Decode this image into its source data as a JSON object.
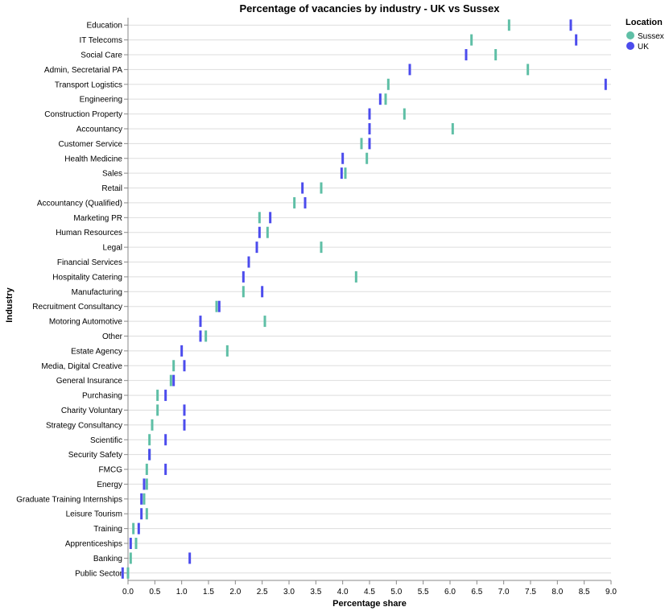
{
  "chart_data": {
    "type": "tick",
    "title": "Percentage of vacancies by industry - UK vs Sussex",
    "xlabel": "Percentage share",
    "ylabel": "Industry",
    "xlim": [
      0,
      9
    ],
    "x_ticks": [
      "0.0",
      "0.5",
      "1.0",
      "1.5",
      "2.0",
      "2.5",
      "3.0",
      "3.5",
      "4.0",
      "4.5",
      "5.0",
      "5.5",
      "6.0",
      "6.5",
      "7.0",
      "7.5",
      "8.0",
      "8.5",
      "9.0"
    ],
    "grid": true,
    "legend": {
      "title": "Location",
      "placement": "top-right"
    },
    "categories": [
      "Education",
      "IT Telecoms",
      "Social Care",
      "Admin, Secretarial PA",
      "Transport Logistics",
      "Engineering",
      "Construction Property",
      "Accountancy",
      "Customer Service",
      "Health Medicine",
      "Sales",
      "Retail",
      "Accountancy (Qualified)",
      "Marketing PR",
      "Human Resources",
      "Legal",
      "Financial Services",
      "Hospitality Catering",
      "Manufacturing",
      "Recruitment Consultancy",
      "Motoring Automotive",
      "Other",
      "Estate Agency",
      "Media, Digital Creative",
      "General Insurance",
      "Purchasing",
      "Charity Voluntary",
      "Strategy Consultancy",
      "Scientific",
      "Security Safety",
      "FMCG",
      "Energy",
      "Graduate Training Internships",
      "Leisure Tourism",
      "Training",
      "Apprenticeships",
      "Banking",
      "Public Sector"
    ],
    "series": [
      {
        "name": "Sussex",
        "color": "#5fbfa6",
        "values": [
          7.1,
          6.4,
          6.85,
          7.45,
          4.85,
          4.8,
          5.15,
          6.05,
          4.35,
          4.45,
          4.05,
          3.6,
          3.1,
          2.45,
          2.6,
          3.6,
          2.25,
          4.25,
          2.15,
          1.65,
          2.55,
          1.45,
          1.85,
          0.85,
          0.8,
          0.55,
          0.55,
          0.45,
          0.4,
          0.4,
          0.35,
          0.35,
          0.3,
          0.35,
          0.1,
          0.15,
          0.05,
          0.0
        ]
      },
      {
        "name": "UK",
        "color": "#4c4ced",
        "values": [
          8.25,
          8.35,
          6.3,
          5.25,
          8.9,
          4.7,
          4.5,
          4.5,
          4.5,
          4.0,
          3.98,
          3.25,
          3.3,
          2.65,
          2.45,
          2.4,
          2.25,
          2.15,
          2.5,
          1.7,
          1.35,
          1.35,
          1.0,
          1.05,
          0.85,
          0.7,
          1.05,
          1.05,
          0.7,
          0.4,
          0.7,
          0.3,
          0.25,
          0.25,
          0.2,
          0.05,
          1.15,
          -0.1
        ]
      }
    ]
  }
}
